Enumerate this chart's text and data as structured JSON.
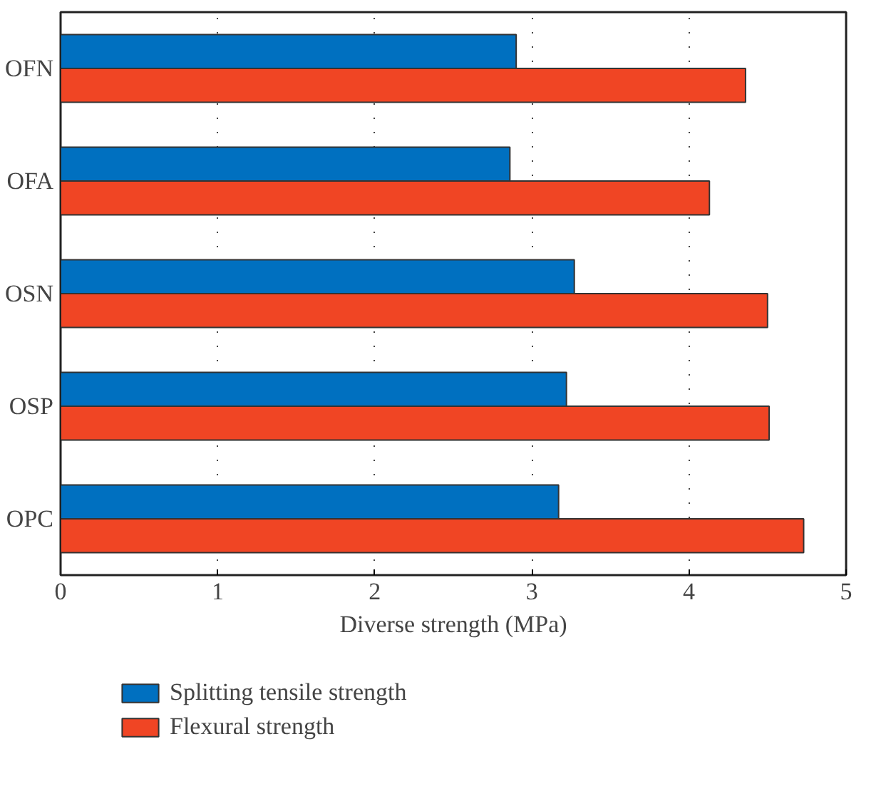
{
  "chart_data": {
    "type": "bar",
    "orientation": "horizontal",
    "xlabel": "Diverse strength (MPa)",
    "categories": [
      "OFN",
      "OFA",
      "OSN",
      "OSP",
      "OPC"
    ],
    "series": [
      {
        "name": "Splitting tensile strength",
        "color": "#0070c0",
        "values": [
          2.9,
          2.86,
          3.27,
          3.22,
          3.17
        ]
      },
      {
        "name": "Flexural strength",
        "color": "#f04524",
        "values": [
          4.36,
          4.13,
          4.5,
          4.51,
          4.73
        ]
      }
    ],
    "xlim": [
      0,
      5
    ],
    "xticks": [
      0,
      1,
      2,
      3,
      4,
      5
    ],
    "grid": "x",
    "legend": "bottom"
  }
}
